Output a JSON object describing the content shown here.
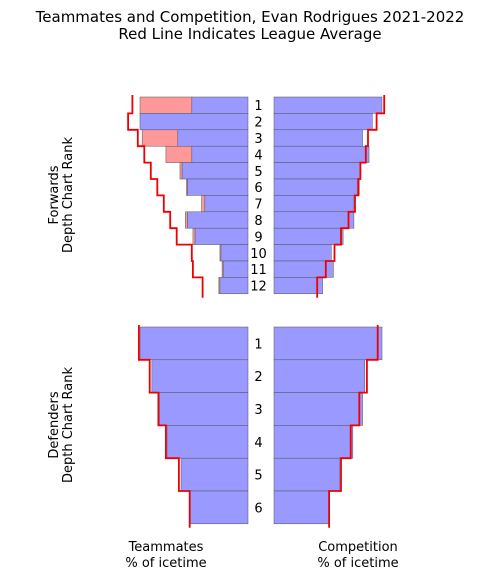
{
  "chart_data": {
    "type": "bar",
    "title": "Teammates and Competition, Evan Rodrigues 2021-2022",
    "subtitle": "Red Line Indicates League Average",
    "x_labels": {
      "teammates": [
        "Teammates",
        "% of icetime"
      ],
      "competition": [
        "Competition",
        "% of icetime"
      ]
    },
    "colors": {
      "base": "#9999ff",
      "excess": "#ff9999",
      "league_line": "#ee0000",
      "edge": "#555555"
    },
    "panels": [
      {
        "name": "forwards",
        "ylabel": [
          "Forwards",
          "Depth Chart Rank"
        ],
        "ranks": [
          "1",
          "2",
          "3",
          "4",
          "5",
          "6",
          "7",
          "8",
          "9",
          "10",
          "11",
          "12"
        ],
        "teammates": [
          100,
          100,
          98,
          76,
          63,
          57,
          43,
          58,
          51,
          26,
          24,
          27
        ],
        "teammates_league": [
          107,
          111,
          102,
          96,
          90,
          84,
          78,
          72,
          66,
          52,
          51,
          42
        ],
        "competition": [
          100,
          91,
          82,
          88,
          80,
          79,
          74,
          74,
          64,
          53,
          55,
          45
        ],
        "competition_league": [
          102,
          95,
          87,
          85,
          80,
          78,
          75,
          69,
          62,
          56,
          48,
          40
        ]
      },
      {
        "name": "defenders",
        "ylabel": [
          "Defenders",
          "Depth Chart Rank"
        ],
        "ranks": [
          "1",
          "2",
          "3",
          "4",
          "5",
          "6"
        ],
        "teammates": [
          100,
          89,
          82,
          75,
          62,
          54
        ],
        "teammates_league": [
          101,
          91,
          83,
          76,
          64,
          54
        ],
        "competition": [
          100,
          84,
          82,
          73,
          61,
          51
        ],
        "competition_league": [
          96,
          86,
          79,
          71,
          62,
          51
        ]
      }
    ]
  }
}
